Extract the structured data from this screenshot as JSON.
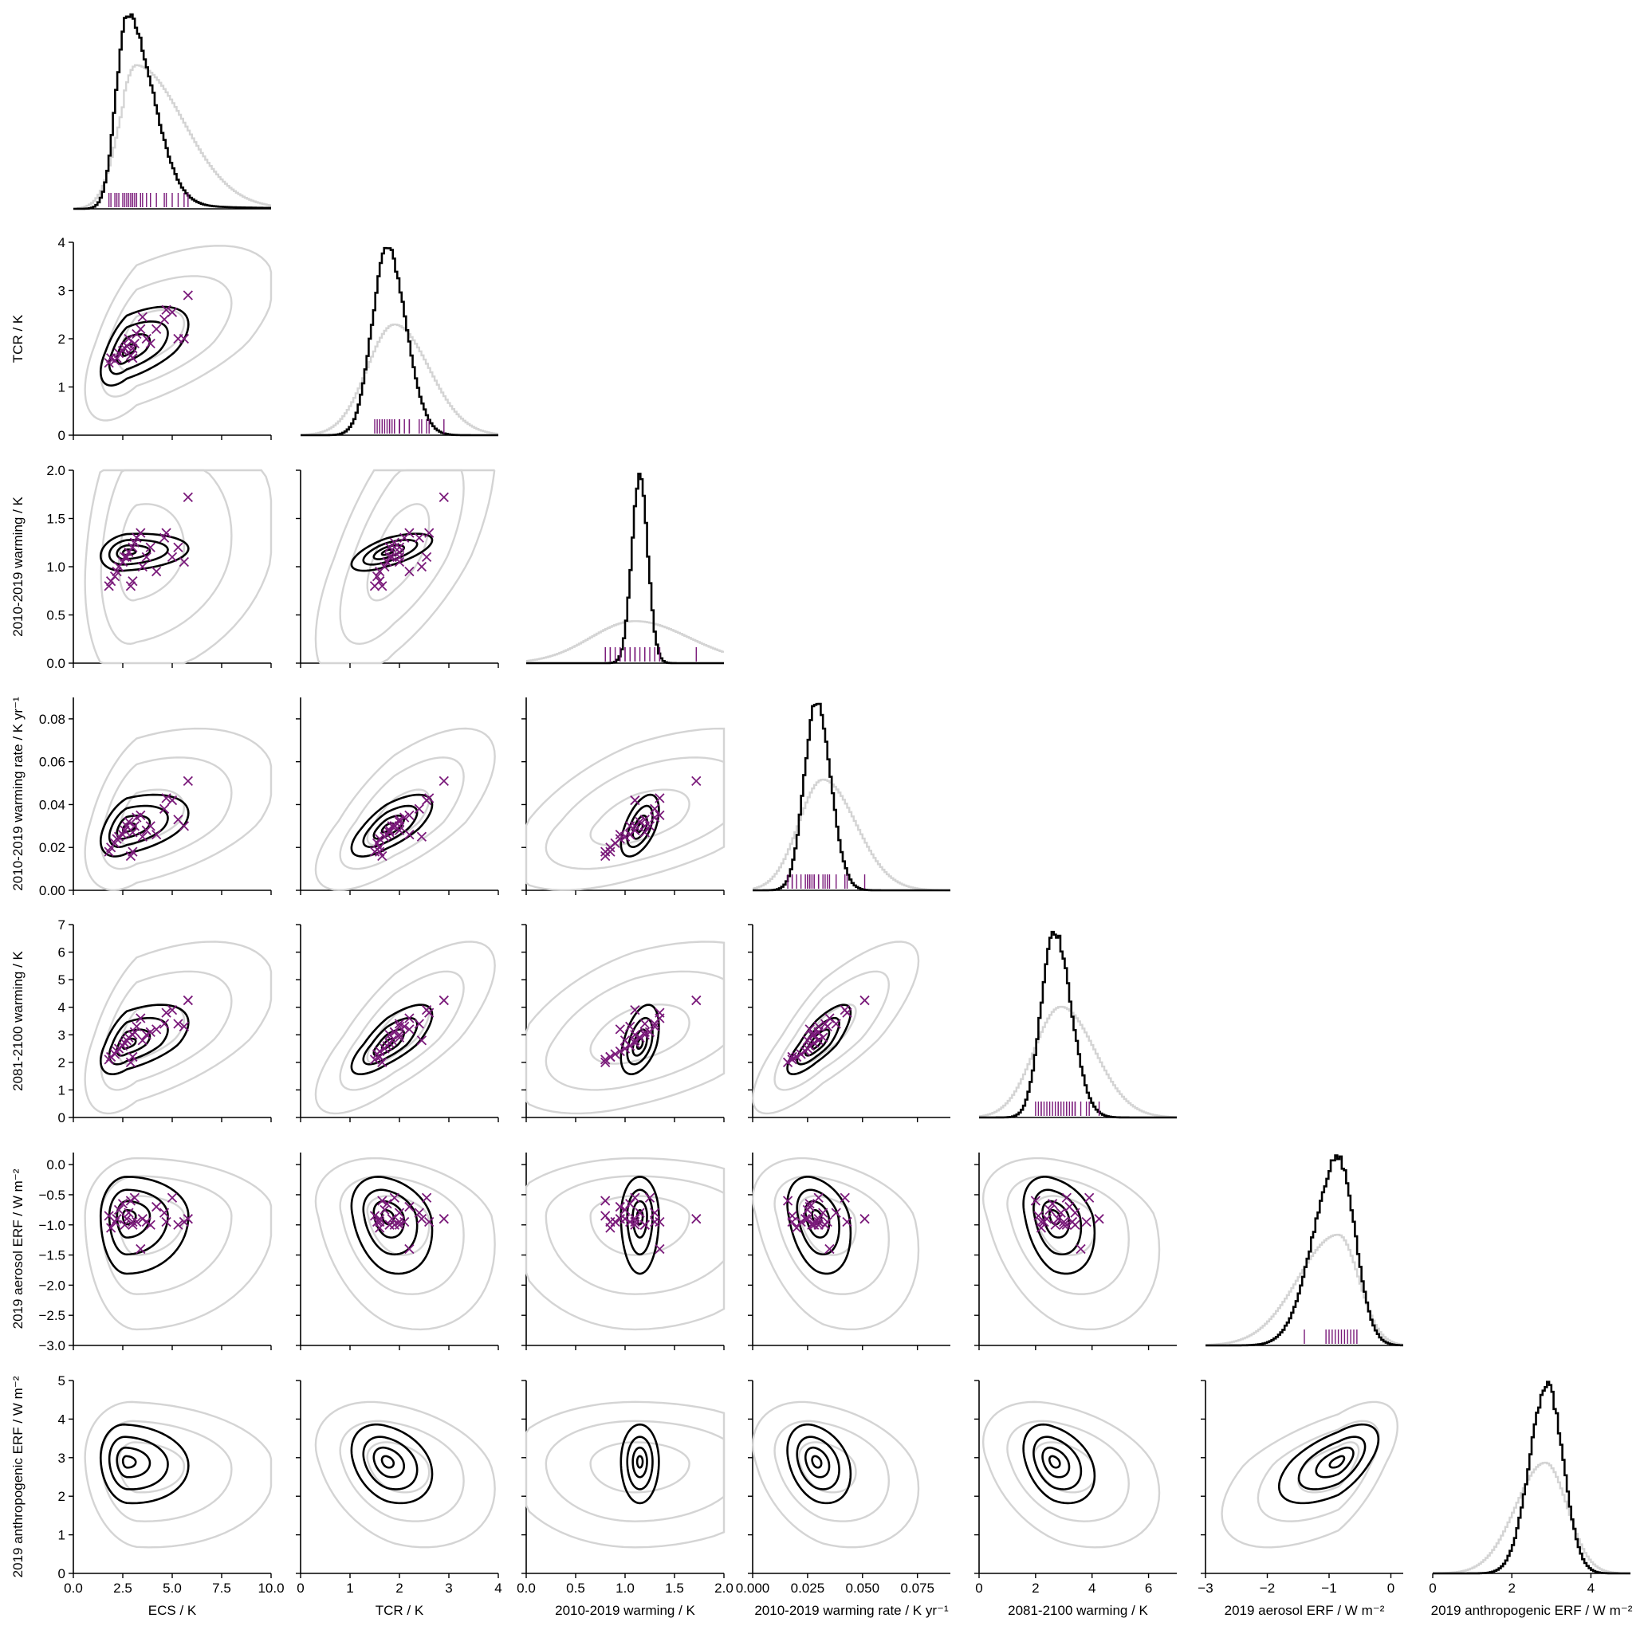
{
  "chart_data": {
    "type": "corner",
    "variables": [
      {
        "label": "ECS / K",
        "range": [
          0,
          10
        ],
        "ticks": [
          0,
          2.5,
          5,
          7.5,
          10
        ],
        "tick_labels": [
          "0.0",
          "2.5",
          "5.0",
          "7.5",
          "10.0"
        ],
        "prior": {
          "mode": 3.2,
          "sd_lo": 0.9,
          "sd_hi": 2.4
        },
        "post": {
          "mode": 2.7,
          "sd_lo": 0.55,
          "sd_hi": 1.3
        }
      },
      {
        "label": "TCR / K",
        "range": [
          0,
          4
        ],
        "ticks": [
          0,
          1,
          2,
          3,
          4
        ],
        "tick_labels": [
          "0",
          "1",
          "2",
          "3",
          "4"
        ],
        "prior": {
          "mode": 1.9,
          "sd_lo": 0.55,
          "sd_hi": 0.7
        },
        "post": {
          "mode": 1.75,
          "sd_lo": 0.3,
          "sd_hi": 0.38
        }
      },
      {
        "label": "2010-2019 warming / K",
        "range": [
          0,
          2
        ],
        "ticks": [
          0,
          0.5,
          1,
          1.5,
          2
        ],
        "tick_labels": [
          "0.0",
          "0.5",
          "1.0",
          "1.5",
          "2.0"
        ],
        "prior": {
          "mode": 1.1,
          "sd_lo": 0.45,
          "sd_hi": 0.55
        },
        "post": {
          "mode": 1.15,
          "sd_lo": 0.08,
          "sd_hi": 0.08
        }
      },
      {
        "label": "2010-2019 warming rate / K yr⁻¹",
        "range": [
          0,
          0.09
        ],
        "ticks": [
          0,
          0.025,
          0.05,
          0.075
        ],
        "tick_labels": [
          "0.000",
          "0.025",
          "0.050",
          "0.075"
        ],
        "prior": {
          "mode": 0.032,
          "sd_lo": 0.011,
          "sd_hi": 0.015
        },
        "post": {
          "mode": 0.029,
          "sd_lo": 0.0055,
          "sd_hi": 0.0065
        }
      },
      {
        "label": "2081-2100 warming / K",
        "range": [
          0,
          7
        ],
        "ticks": [
          0,
          2,
          4,
          6
        ],
        "tick_labels": [
          "0",
          "2",
          "4",
          "6"
        ],
        "prior": {
          "mode": 2.9,
          "sd_lo": 0.95,
          "sd_hi": 1.2
        },
        "post": {
          "mode": 2.65,
          "sd_lo": 0.45,
          "sd_hi": 0.6
        }
      },
      {
        "label": "2019 aerosol ERF / W m⁻²",
        "range": [
          -3,
          0.2
        ],
        "ticks": [
          -3,
          -2,
          -1,
          0
        ],
        "tick_labels": [
          "−3",
          "−2",
          "−1",
          "0"
        ],
        "prior": {
          "mode": -0.85,
          "sd_lo": 0.65,
          "sd_hi": 0.33
        },
        "post": {
          "mode": -0.85,
          "sd_lo": 0.4,
          "sd_hi": 0.27
        }
      },
      {
        "label": "2019 anthropogenic ERF / W m⁻²",
        "range": [
          0,
          5
        ],
        "ticks": [
          0,
          2,
          4
        ],
        "tick_labels": [
          "0",
          "2",
          "4"
        ],
        "prior": {
          "mode": 2.85,
          "sd_lo": 0.75,
          "sd_hi": 0.55
        },
        "post": {
          "mode": 2.9,
          "sd_lo": 0.45,
          "sd_hi": 0.4
        }
      }
    ],
    "y_axes": [
      {
        "label": "TCR / K",
        "range": [
          0,
          4
        ],
        "ticks": [
          0,
          1,
          2,
          3,
          4
        ],
        "tick_labels": [
          "0",
          "1",
          "2",
          "3",
          "4"
        ]
      },
      {
        "label": "2010-2019 warming / K",
        "range": [
          0,
          2
        ],
        "ticks": [
          0,
          0.5,
          1,
          1.5,
          2
        ],
        "tick_labels": [
          "0.0",
          "0.5",
          "1.0",
          "1.5",
          "2.0"
        ]
      },
      {
        "label": "2010-2019 warming rate / K yr⁻¹",
        "range": [
          0,
          0.09
        ],
        "ticks": [
          0,
          0.02,
          0.04,
          0.06,
          0.08
        ],
        "tick_labels": [
          "0.00",
          "0.02",
          "0.04",
          "0.06",
          "0.08"
        ]
      },
      {
        "label": "2081-2100 warming / K",
        "range": [
          0,
          7
        ],
        "ticks": [
          0,
          1,
          2,
          3,
          4,
          5,
          6,
          7
        ],
        "tick_labels": [
          "0",
          "1",
          "2",
          "3",
          "4",
          "5",
          "6",
          "7"
        ]
      },
      {
        "label": "2019 aerosol ERF / W m⁻²",
        "range": [
          -3,
          0.2
        ],
        "ticks": [
          -3,
          -2.5,
          -2,
          -1.5,
          -1,
          -0.5,
          0
        ],
        "tick_labels": [
          "−3.0",
          "−2.5",
          "−2.0",
          "−1.5",
          "−1.0",
          "−0.5",
          "0.0"
        ]
      },
      {
        "label": "2019 anthropogenic ERF / W m⁻²",
        "range": [
          0,
          5
        ],
        "ticks": [
          0,
          1,
          2,
          3,
          4,
          5
        ],
        "tick_labels": [
          "0",
          "1",
          "2",
          "3",
          "4",
          "5"
        ]
      }
    ],
    "correlations": [
      [
        1.0,
        0.6,
        0.2,
        0.45,
        0.55,
        0.0,
        -0.1
      ],
      [
        0.6,
        1.0,
        0.65,
        0.7,
        0.75,
        -0.25,
        -0.3
      ],
      [
        0.2,
        0.65,
        1.0,
        0.55,
        0.45,
        0.0,
        0.0
      ],
      [
        0.45,
        0.7,
        0.55,
        1.0,
        0.8,
        -0.3,
        -0.3
      ],
      [
        0.55,
        0.75,
        0.45,
        0.8,
        1.0,
        -0.3,
        -0.35
      ],
      [
        0.0,
        -0.25,
        0.0,
        -0.3,
        -0.3,
        1.0,
        0.6
      ],
      [
        -0.1,
        -0.3,
        0.0,
        -0.3,
        -0.35,
        0.6,
        1.0
      ]
    ],
    "cmip6_models": {
      "ECS": [
        1.8,
        1.9,
        2.1,
        2.2,
        2.3,
        2.5,
        2.6,
        2.7,
        2.8,
        2.9,
        3.0,
        3.0,
        3.1,
        3.2,
        3.4,
        3.5,
        3.7,
        3.9,
        4.2,
        4.6,
        4.7,
        5.0,
        5.3,
        5.6,
        5.8
      ],
      "TCR": [
        1.5,
        1.6,
        1.55,
        1.6,
        1.7,
        1.75,
        1.8,
        1.85,
        2.0,
        1.65,
        1.6,
        1.8,
        1.9,
        2.1,
        2.2,
        2.45,
        2.0,
        1.9,
        2.2,
        2.4,
        2.6,
        2.55,
        2.0,
        2.0,
        2.9
      ],
      "warming_2010_2019": [
        0.8,
        0.85,
        0.9,
        0.95,
        1.0,
        1.05,
        1.1,
        1.1,
        1.15,
        0.8,
        0.85,
        1.2,
        1.25,
        1.3,
        1.35,
        1.0,
        1.1,
        1.2,
        0.95,
        1.3,
        1.35,
        1.1,
        1.2,
        1.05,
        1.72
      ],
      "warming_rate": [
        0.018,
        0.02,
        0.022,
        0.024,
        0.025,
        0.026,
        0.028,
        0.03,
        0.032,
        0.016,
        0.018,
        0.027,
        0.03,
        0.034,
        0.035,
        0.025,
        0.028,
        0.03,
        0.026,
        0.038,
        0.043,
        0.042,
        0.033,
        0.03,
        0.051
      ],
      "warming_2081_2100": [
        2.1,
        2.2,
        2.3,
        2.4,
        2.5,
        2.6,
        2.7,
        2.8,
        2.9,
        2.0,
        2.2,
        3.0,
        3.1,
        3.3,
        3.6,
        2.8,
        3.0,
        3.1,
        3.2,
        3.4,
        3.8,
        3.9,
        3.4,
        3.3,
        4.25
      ],
      "aerosol_ERF": [
        -0.85,
        -1.05,
        -0.95,
        -0.9,
        -0.75,
        -0.65,
        -1.0,
        -0.9,
        -0.8,
        -0.6,
        -0.95,
        -1.0,
        -0.55,
        -0.95,
        -1.4,
        -0.9,
        -0.95,
        -1.0,
        -0.7,
        -0.8,
        -0.95,
        -0.55,
        -1.0,
        -0.95,
        -0.9
      ]
    },
    "cmip6_aerosol_rug": [
      -1.4,
      -1.05,
      -1.0,
      -0.95,
      -0.9,
      -0.85,
      -0.8,
      -0.75,
      -0.7,
      -0.65,
      -0.6,
      -0.55
    ],
    "series": [
      {
        "name": "",
        "color": "#c8c8c8"
      },
      {
        "name": "",
        "color": "#000000"
      }
    ],
    "marker_color": "#7a1a7a",
    "prior_color": "#d4d4d4",
    "posterior_color": "#000000",
    "legend": "none",
    "grid": false
  }
}
